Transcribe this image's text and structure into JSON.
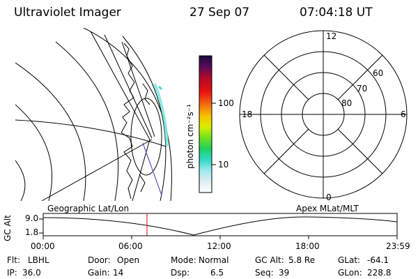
{
  "header": {
    "title": "Ultraviolet Imager",
    "date": "27 Sep 07",
    "time": "07:04:18 UT"
  },
  "colorbar": {
    "label": "photon cm⁻²s⁻¹",
    "ticks": [
      "100",
      "10"
    ]
  },
  "polar": {
    "mlt_labels": {
      "top": "12",
      "left": "18",
      "right": "6",
      "bottom": "0"
    },
    "lat_labels": [
      "60",
      "70",
      "80"
    ]
  },
  "altitude_plot": {
    "axis_label": "GC Alt",
    "left_title": "Geographic Lat/Lon",
    "right_title": "Apex MLat/MLT",
    "y_ticks": [
      "9.0",
      "1.8"
    ],
    "x_ticks": [
      "00:00",
      "06:00",
      "12:00",
      "18:00",
      "23:59"
    ]
  },
  "metadata": {
    "row1": [
      {
        "label": "Flt:",
        "value": "LBHL"
      },
      {
        "label": "Door:",
        "value": "Open"
      },
      {
        "label": "Mode:",
        "value": "Normal"
      },
      {
        "label": "GC Alt:",
        "value": "5.8 Re"
      },
      {
        "label": "GLat:",
        "value": "-64.1"
      }
    ],
    "row2": [
      {
        "label": "IP:",
        "value": "36.0"
      },
      {
        "label": "Gain:",
        "value": "14"
      },
      {
        "label": "Dsp:",
        "value": "6.5"
      },
      {
        "label": "Seq:",
        "value": "39"
      },
      {
        "label": "GLon:",
        "value": "228.8"
      }
    ]
  }
}
